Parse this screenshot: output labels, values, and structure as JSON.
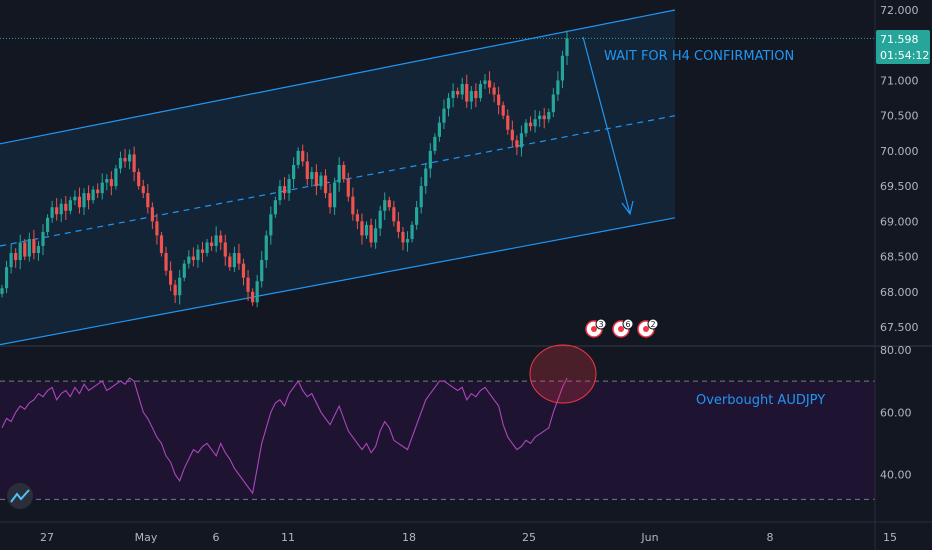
{
  "colors": {
    "background": "#131722",
    "up": "#26a69a",
    "down": "#ef5350",
    "channel": "#2196f3",
    "channel_fill": "#132a3e",
    "rsi_line": "#ab47bc",
    "rsi_band": "#1e1330",
    "grid_text": "#b2b5be",
    "price_tag": "#26a69a",
    "event_red": "#f23645"
  },
  "annotations": {
    "wait": "WAIT FOR H4 CONFIRMATION",
    "overbought": "Overbought AUDJPY"
  },
  "price_tag": {
    "price": "71.598",
    "countdown": "01:54:12"
  },
  "events": [
    {
      "icon": "event-marker-icon",
      "count": "3"
    },
    {
      "icon": "event-marker-icon",
      "count": "6"
    },
    {
      "icon": "event-marker-icon",
      "count": "2"
    }
  ],
  "chart_data": [
    {
      "type": "candlestick",
      "title": "",
      "ylim": [
        67.3,
        72.0
      ],
      "y_ticks": [
        "72.000",
        "71.500",
        "71.000",
        "70.500",
        "70.000",
        "69.500",
        "69.000",
        "68.500",
        "68.000",
        "67.500"
      ],
      "x_ticks": [
        "27",
        "May",
        "6",
        "11",
        "18",
        "25",
        "Jun",
        "8",
        "15"
      ],
      "last_price": 71.598,
      "channel": {
        "upper": {
          "from": 70.1,
          "to": 72.0
        },
        "middle": {
          "from": 68.65,
          "to": 70.5
        },
        "lower": {
          "from": 67.25,
          "to": 69.05
        }
      },
      "close": [
        68.05,
        68.35,
        68.55,
        68.45,
        68.7,
        68.5,
        68.75,
        68.55,
        68.65,
        68.85,
        69.05,
        69.2,
        69.1,
        69.25,
        69.15,
        69.3,
        69.35,
        69.2,
        69.4,
        69.3,
        69.45,
        69.4,
        69.55,
        69.6,
        69.5,
        69.75,
        69.9,
        69.85,
        69.95,
        69.7,
        69.5,
        69.4,
        69.2,
        69.0,
        68.8,
        68.55,
        68.3,
        68.1,
        67.95,
        68.2,
        68.4,
        68.5,
        68.45,
        68.6,
        68.55,
        68.7,
        68.65,
        68.8,
        68.7,
        68.5,
        68.35,
        68.55,
        68.4,
        68.2,
        68.0,
        67.85,
        68.15,
        68.45,
        68.8,
        69.1,
        69.3,
        69.5,
        69.4,
        69.6,
        69.8,
        70.0,
        69.85,
        69.6,
        69.7,
        69.5,
        69.65,
        69.4,
        69.2,
        69.55,
        69.8,
        69.6,
        69.35,
        69.1,
        69.0,
        68.8,
        68.95,
        68.7,
        68.9,
        69.15,
        69.3,
        69.2,
        69.0,
        68.85,
        68.7,
        68.75,
        68.95,
        69.2,
        69.5,
        69.75,
        70.0,
        70.2,
        70.4,
        70.6,
        70.75,
        70.85,
        70.8,
        70.95,
        70.7,
        70.85,
        70.75,
        70.95,
        71.0,
        70.9,
        70.8,
        70.65,
        70.5,
        70.3,
        70.15,
        70.05,
        70.25,
        70.4,
        70.35,
        70.45,
        70.5,
        70.45,
        70.55,
        70.8,
        71.0,
        71.35,
        71.598
      ],
      "rsi": {
        "ylim": [
          27,
          80
        ],
        "y_ticks": [
          "80.00",
          "60.00",
          "40.00"
        ],
        "band": [
          32,
          70
        ],
        "values": [
          55,
          58,
          57,
          60,
          62,
          61,
          63,
          64,
          66,
          65,
          67,
          68,
          64,
          66,
          67,
          65,
          68,
          66,
          69,
          67,
          68,
          69,
          70,
          67,
          68,
          69,
          70,
          69,
          71,
          70,
          65,
          60,
          58,
          55,
          52,
          50,
          46,
          44,
          40,
          38,
          42,
          45,
          48,
          47,
          49,
          50,
          48,
          46,
          50,
          47,
          45,
          42,
          40,
          38,
          36,
          34,
          42,
          50,
          55,
          60,
          63,
          64,
          62,
          66,
          68,
          70,
          67,
          65,
          66,
          63,
          60,
          58,
          56,
          59,
          62,
          58,
          54,
          52,
          50,
          48,
          50,
          47,
          49,
          54,
          57,
          55,
          51,
          50,
          49,
          48,
          52,
          56,
          60,
          64,
          66,
          68,
          70,
          70,
          69,
          68,
          67,
          68,
          64,
          66,
          65,
          67,
          68,
          66,
          64,
          62,
          56,
          52,
          50,
          48,
          49,
          51,
          50,
          52,
          53,
          54,
          55,
          60,
          64,
          68,
          71
        ]
      }
    }
  ]
}
